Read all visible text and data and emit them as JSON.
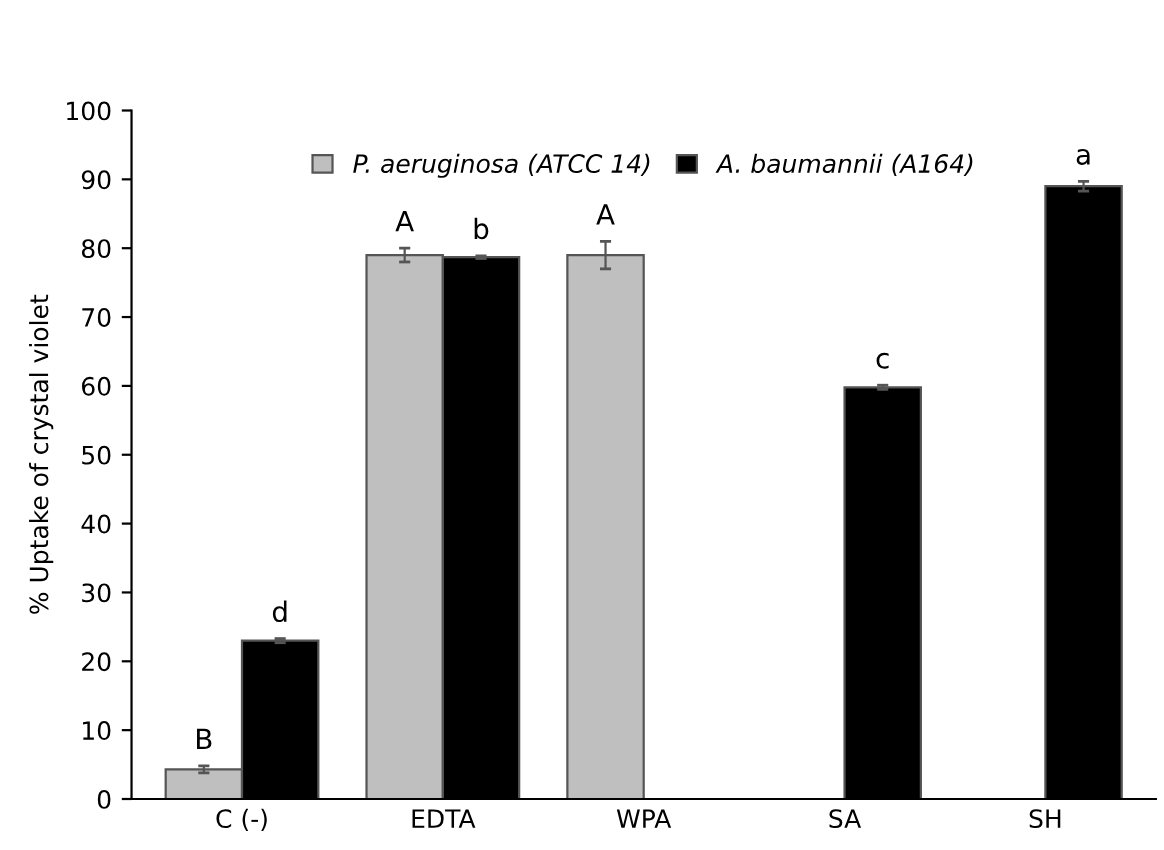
{
  "chart_data": {
    "type": "bar",
    "ylabel": "% Uptake of crystal violet",
    "categories": [
      "C (-)",
      "EDTA",
      "WPA",
      "SA",
      "SH"
    ],
    "series": [
      {
        "name": "P. aeruginosa (ATCC 14)",
        "color": "#bfbfbf",
        "values": [
          4.3,
          79,
          79,
          null,
          null
        ],
        "errors": [
          0.5,
          1,
          2,
          null,
          null
        ],
        "value_labels": [
          "B",
          "A",
          "A",
          null,
          null
        ]
      },
      {
        "name": "A. baumannii (A164)",
        "color": "#000000",
        "values": [
          23,
          78.7,
          null,
          59.8,
          89
        ],
        "errors": [
          0.3,
          0.2,
          null,
          0.3,
          0.7
        ],
        "value_labels": [
          "d",
          "b",
          null,
          "c",
          "a"
        ]
      }
    ],
    "ylim": [
      0,
      100
    ],
    "yticks": [
      0,
      10,
      20,
      30,
      40,
      50,
      60,
      70,
      80,
      90,
      100
    ],
    "grid": false,
    "legend": "top"
  }
}
